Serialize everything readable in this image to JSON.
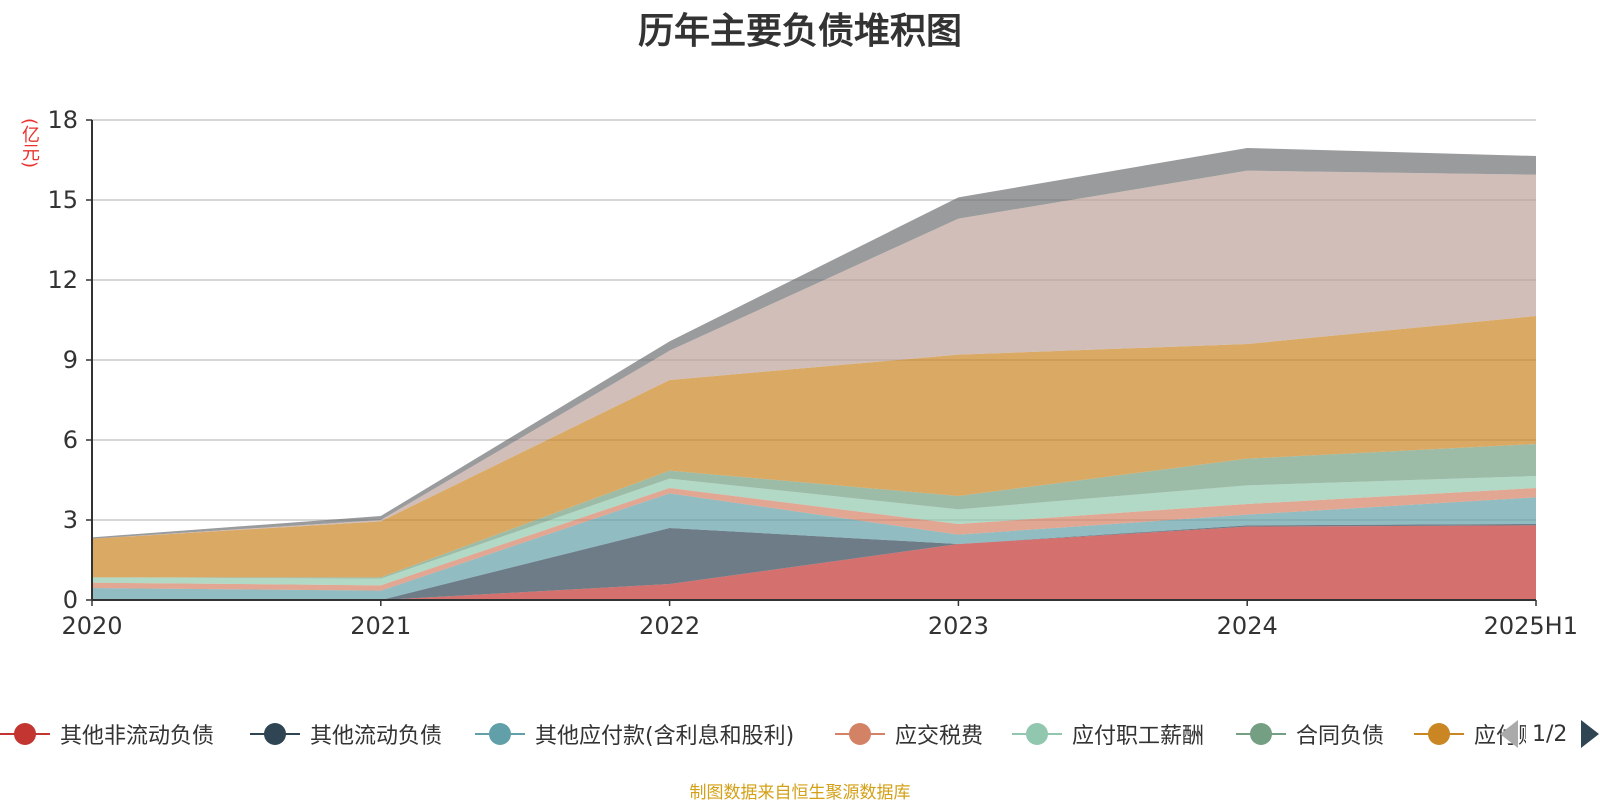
{
  "chart_data": {
    "type": "area",
    "stacked": true,
    "title": "历年主要负债堆积图",
    "y_unit": "(亿元)",
    "categories": [
      "2020",
      "2021",
      "2022",
      "2023",
      "2024",
      "2025H1"
    ],
    "y_ticks": [
      "18",
      "15",
      "12",
      "9",
      "6",
      "3",
      "0"
    ],
    "ylim": [
      0,
      18
    ],
    "grid": true,
    "legend_position": "bottom",
    "series": [
      {
        "name": "其他非流动负债",
        "color": "#c23531",
        "values": [
          0.0,
          0.0,
          0.6,
          2.1,
          2.75,
          2.8
        ]
      },
      {
        "name": "其他流动负债",
        "color": "#2f4554",
        "values": [
          0.0,
          0.0,
          2.1,
          0.0,
          0.05,
          0.05
        ]
      },
      {
        "name": "其他应付款(含利息和股利)",
        "color": "#61a0a8",
        "values": [
          0.45,
          0.35,
          1.3,
          0.35,
          0.4,
          1.0
        ]
      },
      {
        "name": "应交税费",
        "color": "#d48265",
        "values": [
          0.2,
          0.2,
          0.2,
          0.4,
          0.4,
          0.35
        ]
      },
      {
        "name": "应付职工薪酬",
        "color": "#91c7ae",
        "values": [
          0.2,
          0.25,
          0.35,
          0.55,
          0.7,
          0.45
        ]
      },
      {
        "name": "合同负债",
        "color": "#749f83",
        "values": [
          0.0,
          0.05,
          0.3,
          0.5,
          1.0,
          1.2
        ]
      },
      {
        "name": "应付账款",
        "color": "#ca8622",
        "values": [
          1.45,
          2.1,
          3.4,
          5.3,
          4.3,
          4.8
        ]
      },
      {
        "name": "",
        "color": "#bda29a",
        "values": [
          0.0,
          0.05,
          1.1,
          5.1,
          6.5,
          5.3
        ]
      },
      {
        "name": "",
        "color": "#6e7074",
        "values": [
          0.05,
          0.15,
          0.35,
          0.8,
          0.85,
          0.7
        ]
      }
    ],
    "legend_page": "1/2"
  },
  "source_note": "制图数据来自恒生聚源数据库"
}
